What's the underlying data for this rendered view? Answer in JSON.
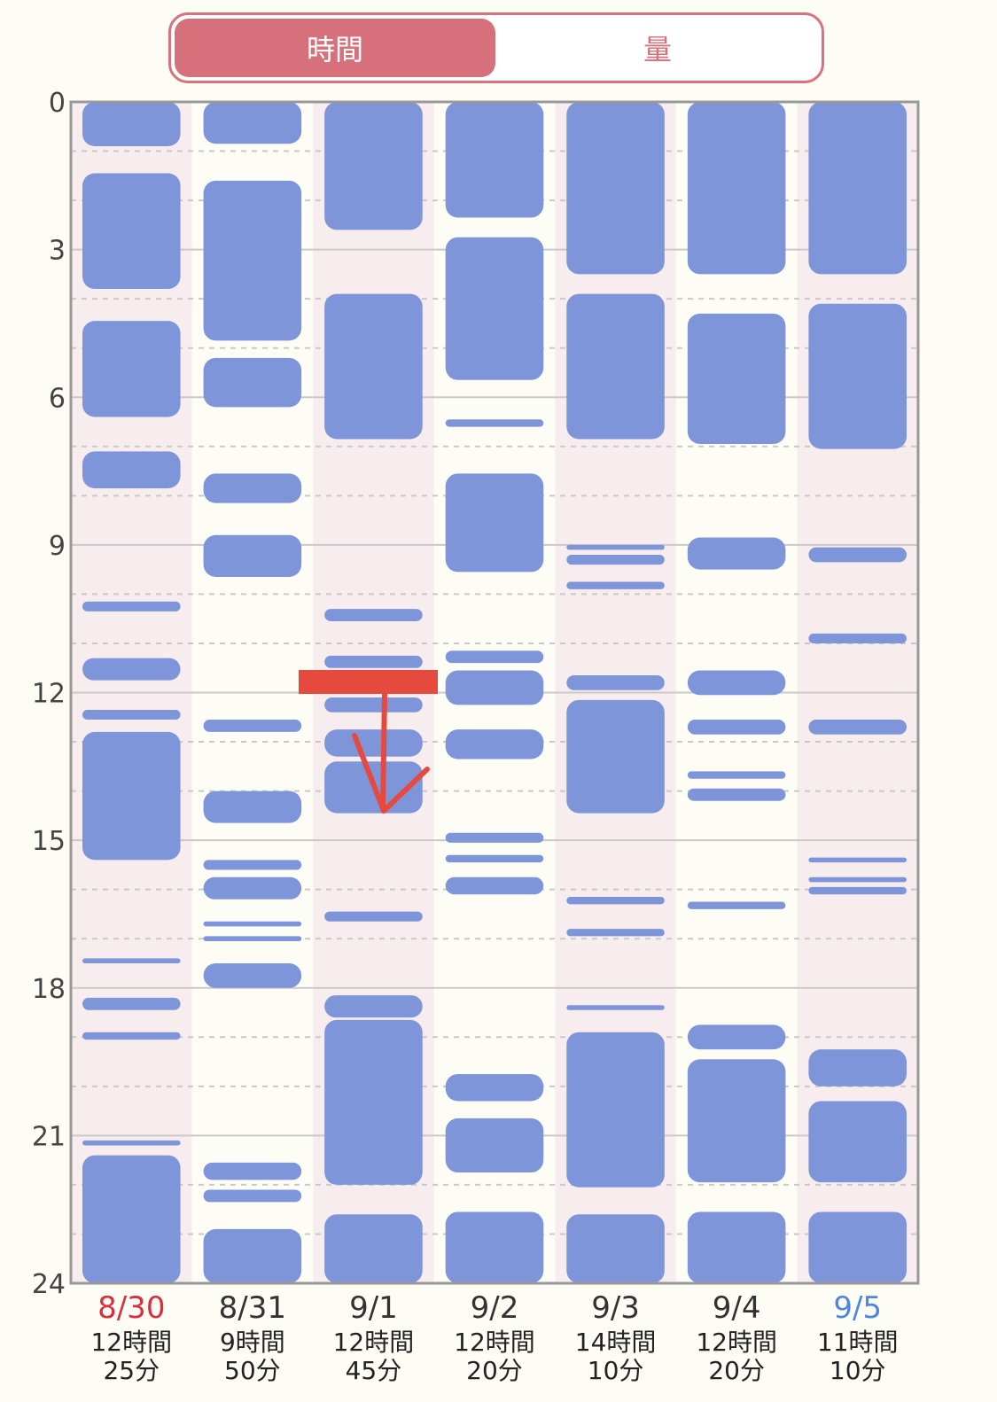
{
  "segment": {
    "left_label": "時間",
    "right_label": "量",
    "selected": "left"
  },
  "colors": {
    "block": "#7f95d9",
    "weekend_bg": "#f8edee",
    "weekday_bg": "#fdfdf6",
    "sat_label": "#4f86e0",
    "sun_label": "#d8303e",
    "normal_label": "#333333",
    "annotation": "#e64a3e"
  },
  "chart_data": {
    "type": "timeline",
    "y_axis": {
      "ticks": [
        "0",
        "3",
        "6",
        "9",
        "12",
        "15",
        "18",
        "21",
        "24"
      ],
      "range": [
        0,
        24
      ]
    },
    "days": [
      {
        "date": "8/30",
        "total_line1": "12時間",
        "total_line2": "25分",
        "color": "sun",
        "shaded": true,
        "blocks": [
          [
            0,
            0.9
          ],
          [
            1.45,
            3.8
          ],
          [
            4.45,
            6.4
          ],
          [
            7.1,
            7.85
          ],
          [
            10.15,
            10.35
          ],
          [
            11.3,
            11.75
          ],
          [
            12.35,
            12.55
          ],
          [
            12.8,
            15.4
          ],
          [
            17.4,
            17.5
          ],
          [
            18.2,
            18.45
          ],
          [
            18.9,
            19.05
          ],
          [
            21.1,
            21.2
          ],
          [
            21.4,
            24
          ]
        ]
      },
      {
        "date": "8/31",
        "total_line1": "9時間",
        "total_line2": "50分",
        "color": "normal",
        "shaded": false,
        "blocks": [
          [
            0,
            0.85
          ],
          [
            1.6,
            4.85
          ],
          [
            5.2,
            6.2
          ],
          [
            7.55,
            8.15
          ],
          [
            8.8,
            9.65
          ],
          [
            12.55,
            12.8
          ],
          [
            14.0,
            14.65
          ],
          [
            15.4,
            15.6
          ],
          [
            15.75,
            16.2
          ],
          [
            16.65,
            16.75
          ],
          [
            16.95,
            17.05
          ],
          [
            17.5,
            18.0
          ],
          [
            21.55,
            21.9
          ],
          [
            22.1,
            22.35
          ],
          [
            22.9,
            24
          ]
        ]
      },
      {
        "date": "9/1",
        "total_line1": "12時間",
        "total_line2": "45分",
        "color": "normal",
        "shaded": true,
        "blocks": [
          [
            0,
            2.6
          ],
          [
            3.9,
            6.85
          ],
          [
            10.3,
            10.55
          ],
          [
            11.25,
            11.5
          ],
          [
            11.6,
            11.85
          ],
          [
            12.1,
            12.4
          ],
          [
            12.75,
            13.3
          ],
          [
            13.4,
            14.45
          ],
          [
            16.45,
            16.65
          ],
          [
            18.15,
            18.6
          ],
          [
            18.65,
            22.0
          ],
          [
            22.6,
            24
          ]
        ]
      },
      {
        "date": "9/2",
        "total_line1": "12時間",
        "total_line2": "20分",
        "color": "normal",
        "shaded": false,
        "blocks": [
          [
            0,
            2.35
          ],
          [
            2.75,
            5.65
          ],
          [
            6.45,
            6.6
          ],
          [
            7.55,
            9.55
          ],
          [
            11.15,
            11.4
          ],
          [
            11.55,
            12.25
          ],
          [
            12.75,
            13.35
          ],
          [
            14.85,
            15.05
          ],
          [
            15.3,
            15.45
          ],
          [
            15.75,
            16.1
          ],
          [
            19.75,
            20.3
          ],
          [
            20.65,
            21.75
          ],
          [
            22.55,
            24
          ]
        ]
      },
      {
        "date": "9/3",
        "total_line1": "14時間",
        "total_line2": "10分",
        "color": "normal",
        "shaded": true,
        "blocks": [
          [
            0,
            3.5
          ],
          [
            3.9,
            6.85
          ],
          [
            9.0,
            9.1
          ],
          [
            9.2,
            9.4
          ],
          [
            9.75,
            9.9
          ],
          [
            11.65,
            11.95
          ],
          [
            12.15,
            14.45
          ],
          [
            16.15,
            16.3
          ],
          [
            16.8,
            16.95
          ],
          [
            18.35,
            18.45
          ],
          [
            18.9,
            22.05
          ],
          [
            22.6,
            24
          ]
        ]
      },
      {
        "date": "9/4",
        "total_line1": "12時間",
        "total_line2": "20分",
        "color": "normal",
        "shaded": false,
        "blocks": [
          [
            0,
            3.5
          ],
          [
            4.3,
            6.95
          ],
          [
            8.85,
            9.5
          ],
          [
            11.55,
            12.05
          ],
          [
            12.55,
            12.85
          ],
          [
            13.6,
            13.75
          ],
          [
            13.95,
            14.2
          ],
          [
            16.25,
            16.4
          ],
          [
            18.75,
            19.25
          ],
          [
            19.45,
            21.95
          ],
          [
            22.55,
            24
          ]
        ]
      },
      {
        "date": "9/5",
        "total_line1": "11時間",
        "total_line2": "10分",
        "color": "sat",
        "shaded": true,
        "blocks": [
          [
            0,
            3.5
          ],
          [
            4.1,
            7.05
          ],
          [
            9.05,
            9.35
          ],
          [
            10.8,
            11.0
          ],
          [
            12.55,
            12.85
          ],
          [
            15.35,
            15.45
          ],
          [
            15.75,
            15.85
          ],
          [
            15.95,
            16.1
          ],
          [
            19.25,
            20.0
          ],
          [
            20.3,
            21.95
          ],
          [
            22.55,
            24
          ]
        ]
      }
    ]
  },
  "annotation": {
    "type": "handwritten-arrow",
    "color": "#e64a3e"
  }
}
